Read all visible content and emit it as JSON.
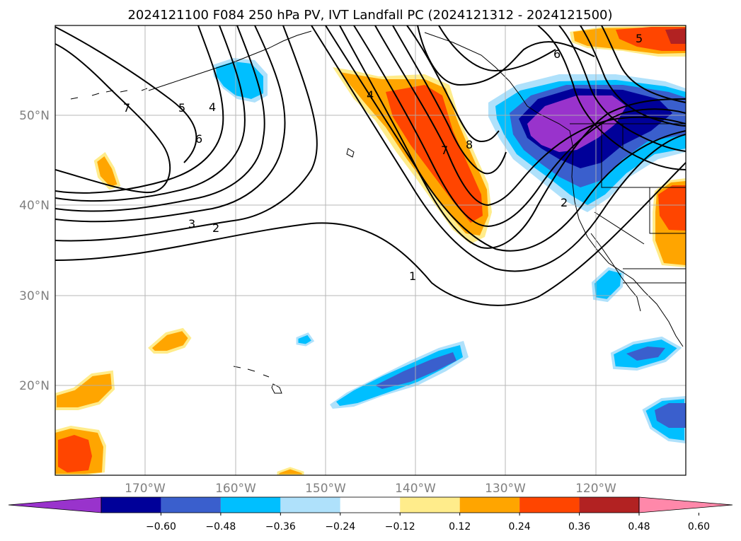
{
  "title": "2024121100 F084 250 hPa PV, IVT Landfall PC (2024121312 - 2024121500)",
  "latitude_labels": [
    "50°N",
    "40°N",
    "30°N",
    "20°N"
  ],
  "longitude_labels": [
    "170°W",
    "160°W",
    "150°W",
    "140°W",
    "130°W",
    "120°W"
  ],
  "colorbar": {
    "colors": [
      "#9933cc",
      "#000099",
      "#3a5fcd",
      "#00bfff",
      "#afe1fb",
      "#ffffff",
      "#ffec8b",
      "#ffa500",
      "#ff4500",
      "#b22222",
      "#ff88aa"
    ],
    "tick_labels": [
      "−0.60",
      "−0.48",
      "−0.36",
      "−0.24",
      "−0.12",
      "0.12",
      "0.24",
      "0.36",
      "0.48",
      "0.60"
    ]
  },
  "contour_labels": [
    "7",
    "5",
    "4",
    "6",
    "3",
    "2",
    "4",
    "7",
    "8",
    "1",
    "6",
    "5",
    "2"
  ]
}
